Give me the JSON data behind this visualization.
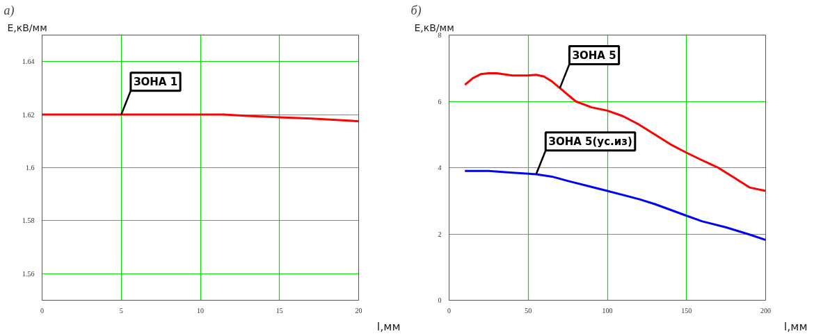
{
  "chart_data": [
    {
      "type": "line",
      "title": "а)",
      "xlabel": "l,мм",
      "ylabel": "E,кВ/мм",
      "xlim": [
        0,
        20
      ],
      "ylim": [
        1.55,
        1.65
      ],
      "xticks": [
        0,
        5,
        10,
        15,
        20
      ],
      "yticks": [
        1.56,
        1.58,
        1.6,
        1.62,
        1.64
      ],
      "grid": true,
      "series": [
        {
          "name": "ЗОНА 1",
          "color": "#ff0000",
          "x": [
            0,
            5,
            10,
            11.5,
            13,
            15,
            17,
            20
          ],
          "values": [
            1.62,
            1.62,
            1.62,
            1.62,
            1.6195,
            1.619,
            1.6185,
            1.6175
          ]
        }
      ]
    },
    {
      "type": "line",
      "title": "б)",
      "xlabel": "l,мм",
      "ylabel": "E,кВ/мм",
      "xlim": [
        0,
        200
      ],
      "ylim": [
        0,
        8
      ],
      "xticks": [
        0,
        50,
        100,
        150,
        200
      ],
      "yticks": [
        0,
        2,
        4,
        6,
        8
      ],
      "grid": true,
      "series": [
        {
          "name": "ЗОНА 5",
          "color": "#ff0000",
          "x": [
            10,
            15,
            20,
            25,
            30,
            40,
            50,
            55,
            60,
            65,
            70,
            80,
            90,
            100,
            110,
            120,
            130,
            140,
            150,
            160,
            170,
            180,
            190,
            200
          ],
          "values": [
            6.5,
            6.7,
            6.82,
            6.85,
            6.85,
            6.78,
            6.78,
            6.8,
            6.75,
            6.6,
            6.4,
            6.0,
            5.82,
            5.72,
            5.55,
            5.3,
            5.0,
            4.7,
            4.45,
            4.22,
            4.0,
            3.7,
            3.4,
            3.3
          ]
        },
        {
          "name": "ЗОНА 5(ус.из)",
          "color": "#0000ff",
          "x": [
            10,
            25,
            40,
            55,
            65,
            75,
            90,
            100,
            120,
            130,
            150,
            160,
            175,
            190,
            200
          ],
          "values": [
            3.9,
            3.9,
            3.85,
            3.8,
            3.73,
            3.6,
            3.42,
            3.3,
            3.05,
            2.9,
            2.55,
            2.38,
            2.2,
            1.98,
            1.82
          ]
        }
      ]
    }
  ]
}
